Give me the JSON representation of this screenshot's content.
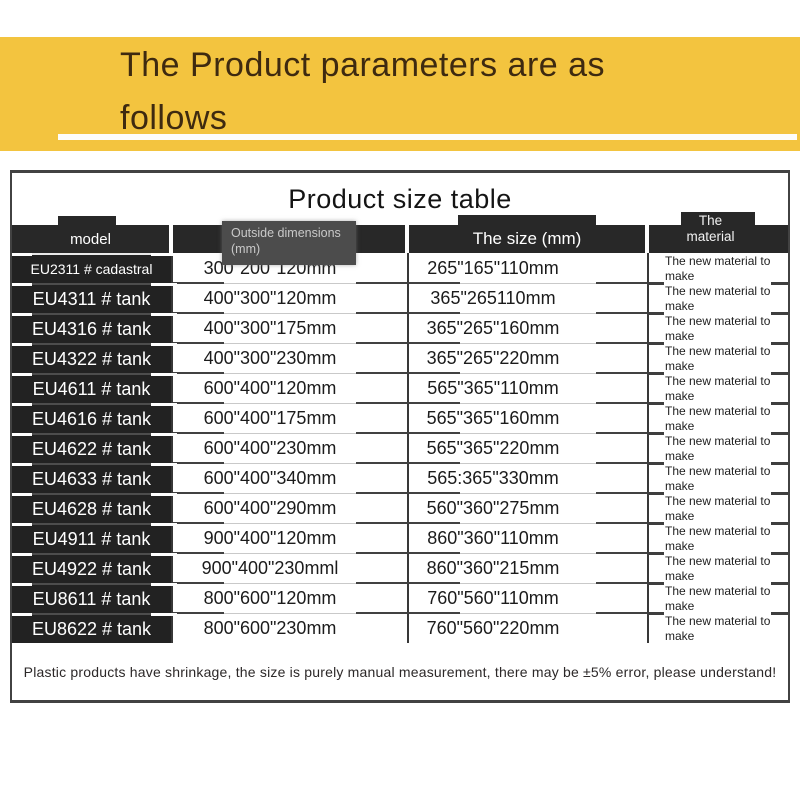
{
  "banner": {
    "line1": "The Product parameters are as",
    "line2": "follows",
    "bg_color": "#F3C43F",
    "text_color": "#3E2A10"
  },
  "table": {
    "title": "Product size table",
    "headers": {
      "model": "model",
      "outside_l1": "Outside dimensions",
      "outside_l2": "(mm)",
      "size": "The size (mm)",
      "material_l1": "The",
      "material_l2": "material"
    },
    "header_bg_color": "#282828",
    "rows": [
      {
        "model": "EU2311 # cadastral",
        "outside": "300\"200\"120mm",
        "size": "265\"165\"110mm",
        "material": "The new material to make"
      },
      {
        "model": "EU4311 # tank",
        "outside": "400\"300\"120mm",
        "size": "365\"265110mm",
        "material": "The new material to make"
      },
      {
        "model": "EU4316 # tank",
        "outside": "400\"300\"175mm",
        "size": "365\"265\"160mm",
        "material": "The new material to make"
      },
      {
        "model": "EU4322 # tank",
        "outside": "400\"300\"230mm",
        "size": "365\"265\"220mm",
        "material": "The new material to make"
      },
      {
        "model": "EU4611 # tank",
        "outside": "600\"400\"120mm",
        "size": "565\"365\"110mm",
        "material": "The new material to make"
      },
      {
        "model": "EU4616 # tank",
        "outside": "600\"400\"175mm",
        "size": "565\"365\"160mm",
        "material": "The new material to make"
      },
      {
        "model": "EU4622 # tank",
        "outside": "600\"400\"230mm",
        "size": "565\"365\"220mm",
        "material": "The new material to make"
      },
      {
        "model": "EU4633 # tank",
        "outside": "600\"400\"340mm",
        "size": "565:365\"330mm",
        "material": "The new material to make"
      },
      {
        "model": "EU4628 # tank",
        "outside": "600\"400\"290mm",
        "size": "560\"360\"275mm",
        "material": "The new material to make"
      },
      {
        "model": "EU4911 # tank",
        "outside": "900\"400\"120mm",
        "size": "860\"360\"110mm",
        "material": "The new material to make"
      },
      {
        "model": "EU4922 # tank",
        "outside": "900\"400\"230mml",
        "size": "860\"360\"215mm",
        "material": "The new material to make"
      },
      {
        "model": "EU8611 # tank",
        "outside": "800\"600\"120mm",
        "size": "760\"560\"110mm",
        "material": "The new material to make"
      },
      {
        "model": "EU8622 # tank",
        "outside": "800\"600\"230mm",
        "size": "760\"560\"220mm",
        "material": "The new material to make"
      }
    ],
    "note": "Plastic products have shrinkage, the size is purely manual measurement, there may be ±5% error, please understand!"
  }
}
